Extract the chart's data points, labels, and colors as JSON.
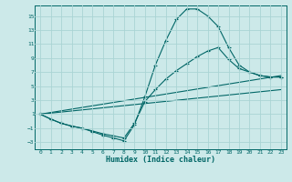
{
  "xlabel": "Humidex (Indice chaleur)",
  "bg_color": "#cce9e9",
  "grid_color": "#aad4d4",
  "line_color": "#006666",
  "xlim": [
    -0.5,
    23.5
  ],
  "ylim": [
    -4.0,
    16.5
  ],
  "xticks": [
    0,
    1,
    2,
    3,
    4,
    5,
    6,
    7,
    8,
    9,
    10,
    11,
    12,
    13,
    14,
    15,
    16,
    17,
    18,
    19,
    20,
    21,
    22,
    23
  ],
  "yticks": [
    -3,
    -1,
    1,
    3,
    5,
    7,
    9,
    11,
    13,
    15
  ],
  "line1_x": [
    0,
    1,
    2,
    3,
    4,
    5,
    6,
    7,
    8,
    9,
    10,
    11,
    12,
    13,
    14,
    15,
    16,
    17,
    18,
    19,
    20,
    21,
    22,
    23
  ],
  "line1_y": [
    1.0,
    0.3,
    -0.3,
    -0.7,
    -1.0,
    -1.5,
    -2.0,
    -2.4,
    -2.8,
    -0.5,
    3.5,
    8.0,
    11.5,
    14.5,
    16.0,
    16.0,
    15.0,
    13.5,
    10.5,
    8.0,
    7.0,
    6.5,
    6.3,
    6.3
  ],
  "line2_x": [
    0,
    1,
    2,
    3,
    4,
    5,
    6,
    7,
    8,
    9,
    10,
    11,
    12,
    13,
    14,
    15,
    16,
    17,
    18,
    19,
    20,
    21,
    22,
    23
  ],
  "line2_y": [
    1.0,
    0.3,
    -0.3,
    -0.7,
    -1.0,
    -1.4,
    -1.8,
    -2.1,
    -2.4,
    -0.3,
    2.8,
    4.5,
    6.0,
    7.2,
    8.2,
    9.2,
    10.0,
    10.5,
    8.8,
    7.5,
    7.0,
    6.5,
    6.3,
    6.3
  ],
  "line3_x": [
    0,
    23
  ],
  "line3_y": [
    1.0,
    6.5
  ],
  "line4_x": [
    0,
    23
  ],
  "line4_y": [
    1.0,
    4.5
  ]
}
